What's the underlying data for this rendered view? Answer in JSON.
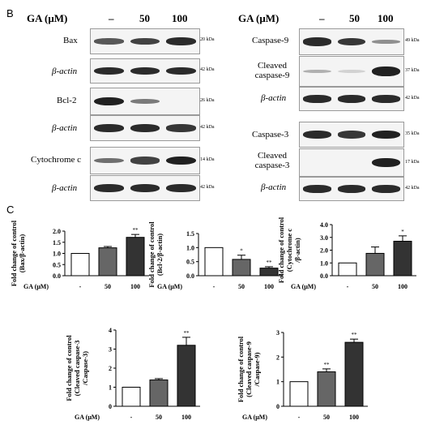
{
  "panelB": {
    "letter": "B",
    "ga_header": "GA (μM)",
    "lanes": [
      "–",
      "50",
      "100"
    ],
    "left_blots": [
      {
        "label": "Bax",
        "kda": "20 kDa",
        "bands": [
          0.7,
          0.8,
          0.9
        ]
      },
      {
        "label": "β-actin",
        "kda": "42 kDa",
        "bands": [
          0.9,
          0.9,
          0.9
        ]
      },
      {
        "label": "Bcl-2",
        "kda": "26 kDa",
        "bands": [
          0.95,
          0.55,
          0.0
        ]
      },
      {
        "label": "β-actin",
        "kda": "42 kDa",
        "bands": [
          0.9,
          0.9,
          0.85
        ]
      },
      {
        "label": "Cytochrome c",
        "kda": "14 kDa",
        "bands": [
          0.6,
          0.8,
          0.95
        ]
      },
      {
        "label": "β-actin",
        "kda": "42 kDa",
        "bands": [
          0.9,
          0.9,
          0.9
        ]
      }
    ],
    "right_blots": [
      {
        "label": "Caspase-9",
        "kda": "49 kDa",
        "bands": [
          0.9,
          0.85,
          0.45
        ]
      },
      {
        "label": "Cleaved caspase-9",
        "kda": "37 kDa",
        "bands": [
          0.3,
          0.15,
          0.95
        ]
      },
      {
        "label": "β-actin",
        "kda": "42 kDa",
        "bands": [
          0.9,
          0.9,
          0.9
        ]
      },
      {
        "label": "Caspase-3",
        "kda": "35 kDa",
        "bands": [
          0.9,
          0.85,
          0.95
        ]
      },
      {
        "label": "Cleaved caspase-3",
        "kda": "17 kDa",
        "bands": [
          0.0,
          0.0,
          0.95
        ]
      },
      {
        "label": "β-actin",
        "kda": "42 kDa",
        "bands": [
          0.9,
          0.9,
          0.9
        ]
      }
    ]
  },
  "panelC": {
    "letter": "C"
  },
  "chart_data": [
    {
      "type": "bar",
      "categories": [
        "-",
        "50",
        "100"
      ],
      "values": [
        1.0,
        1.25,
        1.72
      ],
      "errors": [
        0,
        0.06,
        0.13
      ],
      "sig": [
        "",
        "",
        "**"
      ],
      "ylim": [
        0,
        2.0
      ],
      "yticks": [
        0,
        0.5,
        1.0,
        1.5,
        2.0
      ],
      "ylabel_lines": [
        "Fold change of control",
        "(Bax/β-actin)"
      ],
      "xlabel": "GA (μM)",
      "colors": [
        "#ffffff",
        "#666666",
        "#333333"
      ]
    },
    {
      "type": "bar",
      "categories": [
        "-",
        "50",
        "100"
      ],
      "values": [
        1.0,
        0.58,
        0.27
      ],
      "errors": [
        0,
        0.15,
        0.05
      ],
      "sig": [
        "",
        "*",
        "**"
      ],
      "ylim": [
        0,
        1.5
      ],
      "yticks": [
        0,
        0.5,
        1.0,
        1.5
      ],
      "ylabel_lines": [
        "Fold change of control",
        "(Bcl-2/β-actin)"
      ],
      "xlabel": "GA (μM)",
      "colors": [
        "#ffffff",
        "#666666",
        "#333333"
      ]
    },
    {
      "type": "bar",
      "categories": [
        "-",
        "50",
        "100"
      ],
      "values": [
        1.0,
        1.75,
        2.7
      ],
      "errors": [
        0,
        0.5,
        0.42
      ],
      "sig": [
        "",
        "",
        "*"
      ],
      "ylim": [
        0,
        4.0
      ],
      "yticks": [
        0,
        1.0,
        2.0,
        3.0,
        4.0
      ],
      "ylabel_lines": [
        "Fold change of control",
        "(Cytochrome c",
        "/β-actin)"
      ],
      "xlabel": "GA (μM)",
      "colors": [
        "#ffffff",
        "#666666",
        "#333333"
      ]
    },
    {
      "type": "bar",
      "categories": [
        "-",
        "50",
        "100"
      ],
      "values": [
        1.0,
        1.38,
        3.2
      ],
      "errors": [
        0,
        0.07,
        0.42
      ],
      "sig": [
        "",
        "",
        "**"
      ],
      "ylim": [
        0,
        4
      ],
      "yticks": [
        0,
        1,
        2,
        3,
        4
      ],
      "ylabel_lines": [
        "Fold change of control",
        "(Cleaved caspase-3",
        "/Caspase-3)"
      ],
      "xlabel": "GA (μM)",
      "colors": [
        "#ffffff",
        "#666666",
        "#333333"
      ]
    },
    {
      "type": "bar",
      "categories": [
        "-",
        "50",
        "100"
      ],
      "values": [
        1.0,
        1.4,
        2.6
      ],
      "errors": [
        0,
        0.12,
        0.13
      ],
      "sig": [
        "",
        "**",
        "**"
      ],
      "ylim": [
        0,
        3
      ],
      "yticks": [
        0,
        1,
        2,
        3
      ],
      "ylabel_lines": [
        "Fold change of control",
        "(Cleaved caspase-9",
        "/Caspase-9)"
      ],
      "xlabel": "GA (μM)",
      "colors": [
        "#ffffff",
        "#666666",
        "#333333"
      ]
    }
  ]
}
